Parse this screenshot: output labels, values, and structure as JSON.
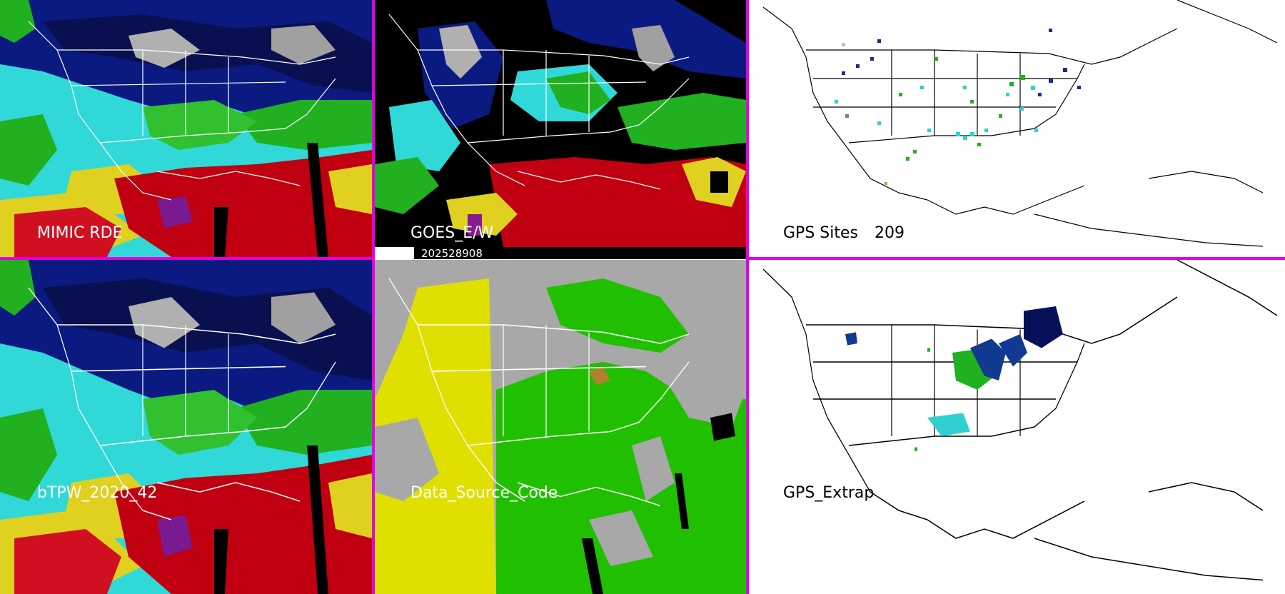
{
  "panels": {
    "top_left": {
      "label": "MIMIC RDE"
    },
    "top_middle": {
      "label": "GOES_E/W"
    },
    "top_right": {
      "label": "GPS Sites",
      "count": "209"
    },
    "bottom_left": {
      "label": "bTPW_2020_42"
    },
    "bottom_middle": {
      "label": "Data_Source_Code"
    },
    "bottom_right": {
      "label": "GPS_Extrap"
    }
  },
  "timestamp": "202528908",
  "colors": {
    "divider": "#e000e0",
    "background": "#ffffff",
    "map_lines_dark": "#000000",
    "map_lines_light": "#ffffff",
    "palette_tpw": [
      "#6a0d6a",
      "#c00010",
      "#e0d000",
      "#10b010",
      "#30e0e0",
      "#103090",
      "#08104a",
      "#a8a8a8"
    ],
    "palette_source": [
      "#e0e000",
      "#20c000",
      "#a8a8a8",
      "#000000"
    ]
  }
}
